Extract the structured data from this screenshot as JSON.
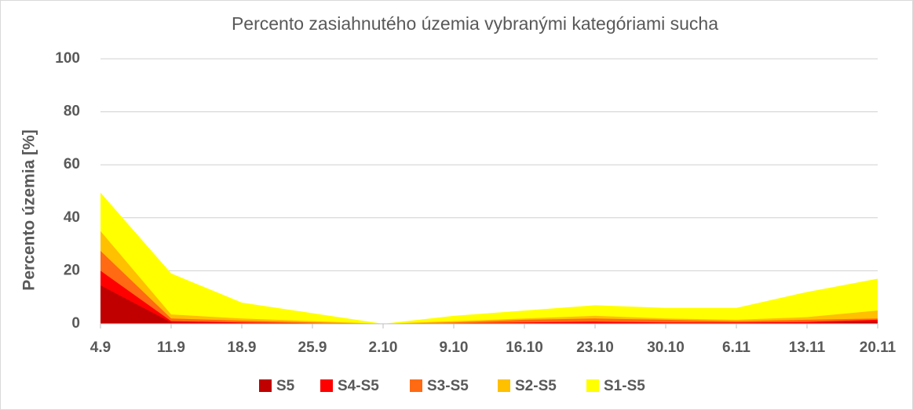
{
  "chart_data": {
    "type": "area",
    "title": "Percento zasiahnutého územia vybranými kategóriami sucha",
    "y_label": "Percento územia  [%]",
    "categories": [
      "4.9",
      "11.9",
      "18.9",
      "25.9",
      "2.10",
      "9.10",
      "16.10",
      "23.10",
      "30.10",
      "6.11",
      "13.11",
      "20.11"
    ],
    "series": [
      {
        "name": "S5",
        "color": "#c00000",
        "values": [
          14.5,
          0.5,
          0.3,
          0.1,
          0,
          0,
          0.2,
          0.3,
          0.2,
          0.2,
          0.3,
          0.8
        ]
      },
      {
        "name": "S4-S5",
        "color": "#ff0000",
        "values": [
          20,
          1,
          0.5,
          0.2,
          0,
          0.2,
          0.5,
          0.8,
          0.5,
          0.5,
          0.7,
          1.5
        ]
      },
      {
        "name": "S3-S5",
        "color": "#ff6a13",
        "values": [
          27.5,
          2,
          1.2,
          0.5,
          0,
          0.5,
          1.5,
          2,
          1.5,
          1,
          1.5,
          2
        ]
      },
      {
        "name": "S2-S5",
        "color": "#ffc000",
        "values": [
          35,
          3.5,
          2,
          1,
          0,
          1,
          2,
          3,
          2,
          1.5,
          2.5,
          5
        ]
      },
      {
        "name": "S1-S5",
        "color": "#ffff00",
        "values": [
          49.5,
          19,
          8,
          4,
          0,
          3,
          5,
          7,
          6,
          6,
          12,
          17
        ]
      }
    ],
    "ylim": [
      0,
      100
    ],
    "yticks": [
      0,
      20,
      40,
      60,
      80,
      100
    ],
    "grid": true,
    "legend": "bottom"
  }
}
